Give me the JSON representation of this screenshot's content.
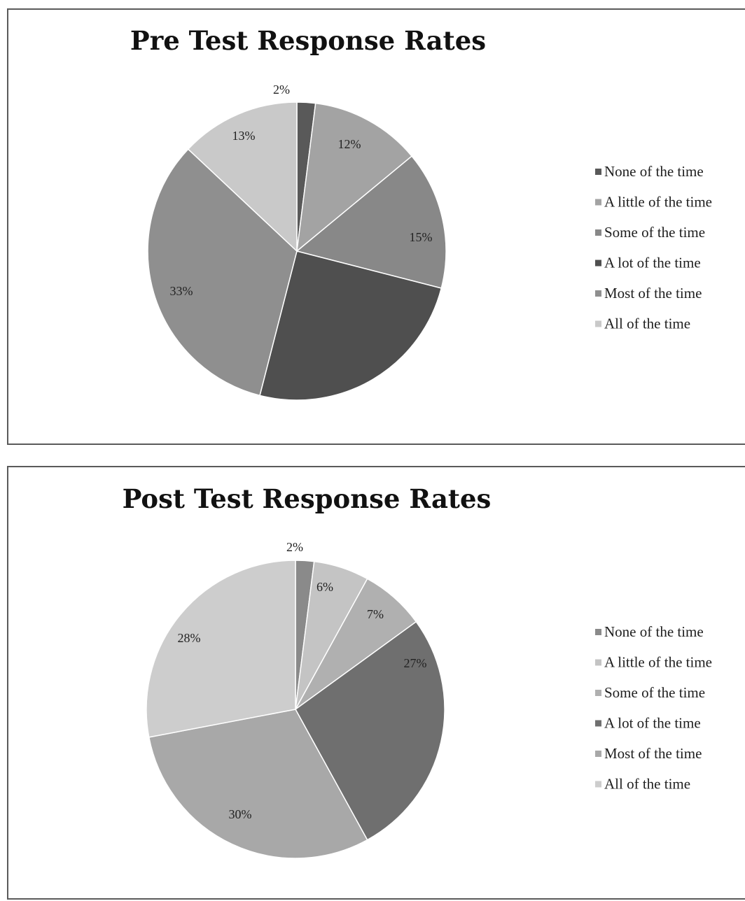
{
  "chart_data": [
    {
      "type": "pie",
      "title": "Pre Test Response Rates",
      "categories": [
        "None of the time",
        "A little of the time",
        "Some of the time",
        "A lot of the time",
        "Most of the time",
        "All of the time"
      ],
      "values": [
        2,
        12,
        15,
        25,
        33,
        13
      ],
      "data_labels": [
        "2%",
        "12%",
        "15%",
        "",
        "33%",
        "13%"
      ],
      "colors": [
        "#595959",
        "#a3a3a3",
        "#888888",
        "#4f4f4f",
        "#8f8f8f",
        "#c9c9c9"
      ],
      "legend": "right"
    },
    {
      "type": "pie",
      "title": "Post Test Response Rates",
      "categories": [
        "None of the time",
        "A little of the time",
        "Some of the time",
        "A lot of the time",
        "Most of the time",
        "All of the time"
      ],
      "values": [
        2,
        6,
        7,
        27,
        30,
        28
      ],
      "data_labels": [
        "2%",
        "6%",
        "7%",
        "27%",
        "30%",
        "28%"
      ],
      "colors": [
        "#8a8a8a",
        "#c4c4c4",
        "#b0b0b0",
        "#6f6f6f",
        "#a8a8a8",
        "#cdcdcd"
      ],
      "legend": "right"
    }
  ]
}
